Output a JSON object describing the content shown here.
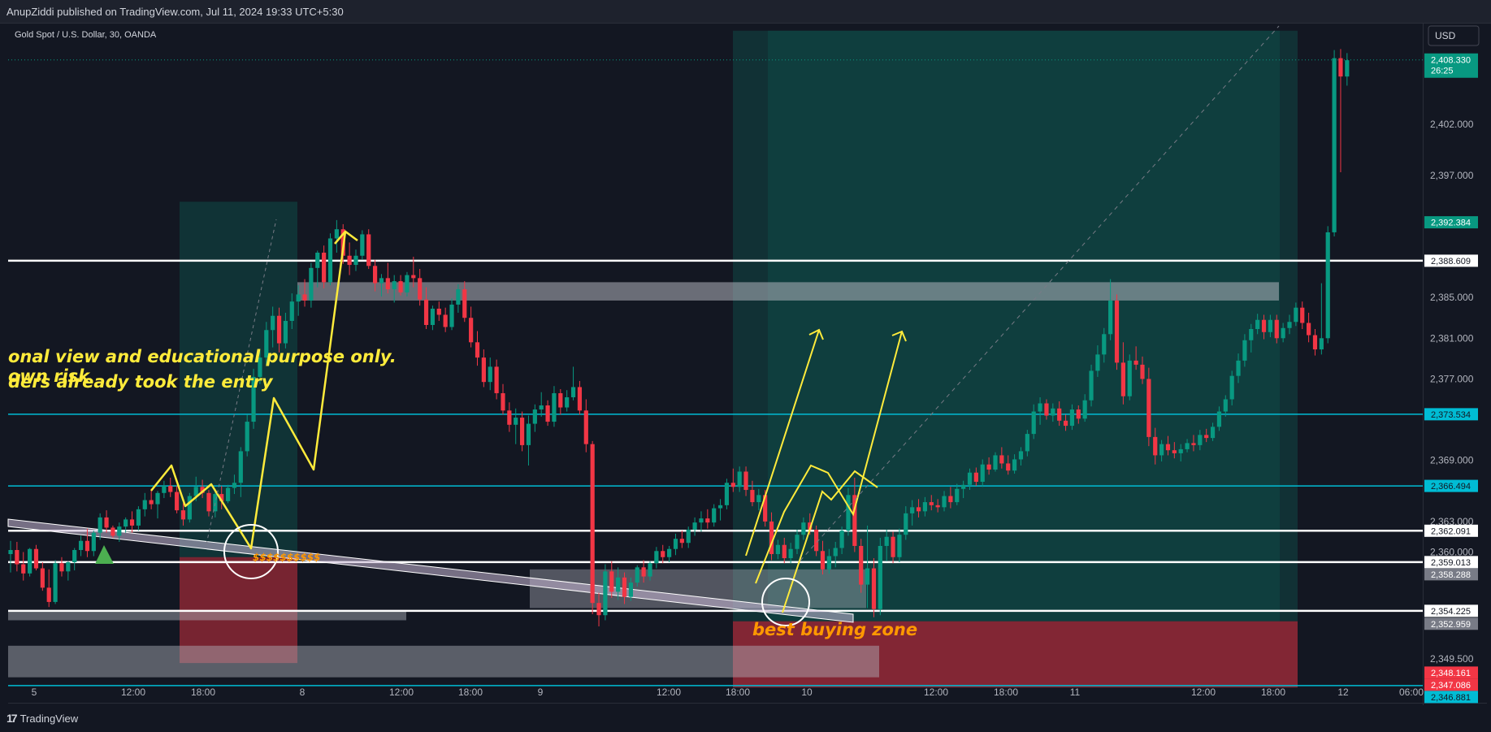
{
  "header": {
    "publisher": "AnupZiddi published on TradingView.com, Jul 11, 2024 19:33 UTC+5:30"
  },
  "footer": {
    "brand": "TradingView"
  },
  "chart_data": {
    "type": "candlestick",
    "title": "Gold Spot / U.S. Dollar, 30, OANDA",
    "currency_button": "USD",
    "grid": false,
    "ylim": [
      2345.2,
      2411.9
    ],
    "x_tick_labels": [
      "5",
      "12:00",
      "18:00",
      "8",
      "12:00",
      "18:00",
      "9",
      "12:00",
      "18:00",
      "10",
      "12:00",
      "18:00",
      "11",
      "12:00",
      "18:00",
      "12",
      "06:00"
    ],
    "y_tick_labels": [
      2402.0,
      2397.0,
      2385.0,
      2381.0,
      2377.0,
      2369.0,
      2363.0,
      2360.0,
      2349.5
    ],
    "current_price": {
      "value": "2,408.330",
      "countdown": "26:25",
      "color": "#089981"
    },
    "price_labels": [
      {
        "value": "2,392.384",
        "bg": "#089981",
        "fg": "#ffffff"
      },
      {
        "value": "2,388.609",
        "bg": "#ffffff",
        "fg": "#131722"
      },
      {
        "value": "2,373.534",
        "bg": "#00bcd4",
        "fg": "#131722"
      },
      {
        "value": "2,366.494",
        "bg": "#00bcd4",
        "fg": "#131722"
      },
      {
        "value": "2,362.091",
        "bg": "#ffffff",
        "fg": "#131722"
      },
      {
        "value": "2,359.013",
        "bg": "#ffffff",
        "fg": "#131722"
      },
      {
        "value": "2,358.288",
        "bg": "#787b86",
        "fg": "#ffffff"
      },
      {
        "value": "2,354.225",
        "bg": "#ffffff",
        "fg": "#131722"
      },
      {
        "value": "2,352.959",
        "bg": "#787b86",
        "fg": "#ffffff"
      },
      {
        "value": "2,348.161",
        "bg": "#f23645",
        "fg": "#ffffff"
      },
      {
        "value": "2,347.086",
        "bg": "#f23645",
        "fg": "#ffffff"
      },
      {
        "value": "2,346.881",
        "bg": "#00bcd4",
        "fg": "#131722"
      }
    ],
    "horizontal_lines": [
      {
        "price": 2388.609,
        "color": "#ffffff"
      },
      {
        "price": 2373.534,
        "color": "#00bcd4"
      },
      {
        "price": 2366.494,
        "color": "#00bcd4"
      },
      {
        "price": 2362.091,
        "color": "#ffffff"
      },
      {
        "price": 2359.013,
        "color": "#ffffff"
      },
      {
        "price": 2354.225,
        "color": "#ffffff"
      },
      {
        "price": 2346.881,
        "color": "#00bcd4"
      }
    ],
    "annotations": {
      "text_line_1": "onal view and educational purpose only.",
      "text_line_2": "own risk",
      "text_line_3": "ders already took the entry",
      "liquidity_label": "$$$$$$$$$$",
      "zone_label": "best buying zone"
    },
    "candles": [
      [
        2359.8,
        2361.1,
        2358.0,
        2360.2
      ],
      [
        2360.2,
        2361.0,
        2358.1,
        2358.8
      ],
      [
        2358.8,
        2360.0,
        2357.2,
        2357.9
      ],
      [
        2357.9,
        2360.4,
        2357.6,
        2360.3
      ],
      [
        2360.3,
        2360.7,
        2358.2,
        2358.4
      ],
      [
        2358.4,
        2359.0,
        2356.2,
        2356.5
      ],
      [
        2356.5,
        2358.3,
        2354.6,
        2355.1
      ],
      [
        2355.1,
        2359.2,
        2354.9,
        2358.9
      ],
      [
        2358.9,
        2359.5,
        2357.6,
        2358.1
      ],
      [
        2358.1,
        2359.1,
        2357.2,
        2359.0
      ],
      [
        2359.0,
        2360.4,
        2358.2,
        2360.2
      ],
      [
        2360.2,
        2361.6,
        2359.6,
        2361.1
      ],
      [
        2361.1,
        2362.3,
        2359.5,
        2360.1
      ],
      [
        2360.1,
        2362.1,
        2359.6,
        2361.9
      ],
      [
        2361.9,
        2363.8,
        2361.2,
        2363.4
      ],
      [
        2363.4,
        2364.1,
        2361.9,
        2362.4
      ],
      [
        2362.4,
        2362.6,
        2361.4,
        2361.6
      ],
      [
        2361.6,
        2362.9,
        2361.0,
        2362.5
      ],
      [
        2362.5,
        2363.4,
        2361.9,
        2363.2
      ],
      [
        2363.2,
        2364.0,
        2361.9,
        2362.6
      ],
      [
        2362.6,
        2364.5,
        2362.1,
        2364.2
      ],
      [
        2364.2,
        2365.8,
        2363.5,
        2365.1
      ],
      [
        2365.1,
        2366.2,
        2364.2,
        2364.7
      ],
      [
        2364.7,
        2366.0,
        2363.3,
        2365.8
      ],
      [
        2365.8,
        2367.0,
        2365.3,
        2366.5
      ],
      [
        2366.5,
        2367.3,
        2365.4,
        2365.9
      ],
      [
        2365.9,
        2366.5,
        2363.8,
        2364.1
      ],
      [
        2364.1,
        2364.8,
        2362.6,
        2363.2
      ],
      [
        2363.2,
        2365.8,
        2362.9,
        2365.5
      ],
      [
        2365.5,
        2367.4,
        2365.0,
        2366.4
      ],
      [
        2366.4,
        2367.1,
        2365.3,
        2365.8
      ],
      [
        2365.8,
        2366.1,
        2363.5,
        2364.0
      ],
      [
        2364.0,
        2366.0,
        2363.4,
        2365.7
      ],
      [
        2365.7,
        2366.5,
        2364.2,
        2365.0
      ],
      [
        2365.0,
        2366.6,
        2364.8,
        2366.3
      ],
      [
        2366.3,
        2367.6,
        2365.7,
        2366.8
      ],
      [
        2366.8,
        2370.3,
        2365.4,
        2369.9
      ],
      [
        2369.9,
        2373.5,
        2369.4,
        2372.8
      ],
      [
        2372.8,
        2378.0,
        2372.1,
        2377.2
      ],
      [
        2377.2,
        2379.8,
        2376.5,
        2379.1
      ],
      [
        2379.1,
        2382.6,
        2378.4,
        2381.8
      ],
      [
        2381.8,
        2384.1,
        2380.1,
        2383.2
      ],
      [
        2383.2,
        2384.0,
        2379.6,
        2380.5
      ],
      [
        2380.5,
        2383.5,
        2380.0,
        2382.7
      ],
      [
        2382.7,
        2385.4,
        2381.9,
        2384.6
      ],
      [
        2384.6,
        2386.2,
        2383.2,
        2385.3
      ],
      [
        2385.3,
        2386.8,
        2384.1,
        2384.7
      ],
      [
        2384.7,
        2388.4,
        2384.0,
        2387.9
      ],
      [
        2387.9,
        2389.6,
        2386.0,
        2389.4
      ],
      [
        2389.4,
        2390.1,
        2385.9,
        2386.5
      ],
      [
        2386.5,
        2391.3,
        2386.2,
        2390.8
      ],
      [
        2390.8,
        2392.6,
        2389.4,
        2391.7
      ],
      [
        2391.7,
        2392.2,
        2388.3,
        2389.1
      ],
      [
        2389.1,
        2390.4,
        2387.2,
        2388.2
      ],
      [
        2388.2,
        2389.7,
        2387.6,
        2389.1
      ],
      [
        2389.1,
        2391.6,
        2388.7,
        2391.2
      ],
      [
        2391.2,
        2391.7,
        2387.8,
        2388.1
      ],
      [
        2388.1,
        2388.7,
        2385.6,
        2386.4
      ],
      [
        2386.4,
        2387.3,
        2385.1,
        2386.9
      ],
      [
        2386.9,
        2388.4,
        2385.4,
        2385.8
      ],
      [
        2385.8,
        2387.2,
        2384.5,
        2386.6
      ],
      [
        2386.6,
        2387.2,
        2385.2,
        2385.5
      ],
      [
        2385.5,
        2387.5,
        2385.1,
        2387.2
      ],
      [
        2387.2,
        2389.0,
        2386.0,
        2386.9
      ],
      [
        2386.9,
        2387.8,
        2384.2,
        2384.8
      ],
      [
        2384.8,
        2386.0,
        2381.9,
        2382.3
      ],
      [
        2382.3,
        2384.2,
        2381.8,
        2383.9
      ],
      [
        2383.9,
        2384.6,
        2382.7,
        2383.3
      ],
      [
        2383.3,
        2384.0,
        2381.6,
        2382.1
      ],
      [
        2382.1,
        2384.9,
        2381.8,
        2384.3
      ],
      [
        2384.3,
        2386.3,
        2383.5,
        2385.8
      ],
      [
        2385.8,
        2386.6,
        2382.6,
        2383.0
      ],
      [
        2383.0,
        2384.1,
        2380.1,
        2380.6
      ],
      [
        2380.6,
        2381.7,
        2378.3,
        2379.1
      ],
      [
        2379.1,
        2379.9,
        2376.2,
        2376.7
      ],
      [
        2376.7,
        2379.1,
        2375.9,
        2378.2
      ],
      [
        2378.2,
        2378.9,
        2375.0,
        2375.6
      ],
      [
        2375.6,
        2376.5,
        2373.5,
        2373.9
      ],
      [
        2373.9,
        2374.7,
        2371.8,
        2372.5
      ],
      [
        2372.5,
        2374.1,
        2370.6,
        2373.2
      ],
      [
        2373.2,
        2373.8,
        2369.9,
        2370.5
      ],
      [
        2370.5,
        2373.4,
        2368.5,
        2372.6
      ],
      [
        2372.6,
        2374.5,
        2371.8,
        2374.0
      ],
      [
        2374.0,
        2375.7,
        2373.3,
        2374.4
      ],
      [
        2374.4,
        2374.9,
        2372.4,
        2372.8
      ],
      [
        2372.8,
        2376.3,
        2372.3,
        2375.6
      ],
      [
        2375.6,
        2376.0,
        2373.5,
        2374.2
      ],
      [
        2374.2,
        2375.9,
        2373.8,
        2375.2
      ],
      [
        2375.2,
        2378.2,
        2374.9,
        2376.2
      ],
      [
        2376.2,
        2376.8,
        2373.5,
        2373.9
      ],
      [
        2373.9,
        2375.0,
        2369.8,
        2370.6
      ],
      [
        2370.6,
        2370.9,
        2353.9,
        2355.0
      ],
      [
        2355.0,
        2356.0,
        2352.7,
        2353.8
      ],
      [
        2353.8,
        2358.8,
        2353.3,
        2358.1
      ],
      [
        2358.1,
        2359.1,
        2355.5,
        2356.1
      ],
      [
        2356.1,
        2358.5,
        2355.3,
        2357.5
      ],
      [
        2357.5,
        2358.0,
        2354.9,
        2355.6
      ],
      [
        2355.6,
        2357.5,
        2355.2,
        2357.0
      ],
      [
        2357.0,
        2358.7,
        2356.6,
        2358.5
      ],
      [
        2358.5,
        2359.2,
        2357.0,
        2357.6
      ],
      [
        2357.6,
        2359.1,
        2357.2,
        2358.9
      ],
      [
        2358.9,
        2360.5,
        2358.4,
        2360.1
      ],
      [
        2360.1,
        2360.7,
        2358.9,
        2359.5
      ],
      [
        2359.5,
        2360.6,
        2359.0,
        2360.3
      ],
      [
        2360.3,
        2361.8,
        2359.7,
        2361.3
      ],
      [
        2361.3,
        2362.1,
        2360.4,
        2360.9
      ],
      [
        2360.9,
        2362.5,
        2360.4,
        2362.2
      ],
      [
        2362.2,
        2363.4,
        2361.6,
        2362.9
      ],
      [
        2362.9,
        2364.0,
        2362.0,
        2363.3
      ],
      [
        2363.3,
        2364.2,
        2362.3,
        2362.9
      ],
      [
        2362.9,
        2364.7,
        2362.5,
        2364.3
      ],
      [
        2364.3,
        2365.2,
        2363.1,
        2364.6
      ],
      [
        2364.6,
        2367.2,
        2364.2,
        2366.8
      ],
      [
        2366.8,
        2368.2,
        2365.9,
        2366.4
      ],
      [
        2366.4,
        2368.4,
        2365.9,
        2367.9
      ],
      [
        2367.9,
        2368.4,
        2365.5,
        2366.1
      ],
      [
        2366.1,
        2367.0,
        2364.5,
        2364.9
      ],
      [
        2364.9,
        2366.2,
        2364.1,
        2365.6
      ],
      [
        2365.6,
        2366.1,
        2362.5,
        2363.0
      ],
      [
        2363.0,
        2363.9,
        2359.2,
        2359.8
      ],
      [
        2359.8,
        2361.2,
        2359.3,
        2360.7
      ],
      [
        2360.7,
        2361.4,
        2358.9,
        2359.4
      ],
      [
        2359.4,
        2360.9,
        2358.9,
        2360.3
      ],
      [
        2360.3,
        2362.2,
        2359.8,
        2361.7
      ],
      [
        2361.7,
        2363.4,
        2361.2,
        2362.9
      ],
      [
        2362.9,
        2363.8,
        2361.7,
        2362.2
      ],
      [
        2362.2,
        2362.6,
        2359.6,
        2360.1
      ],
      [
        2360.1,
        2361.1,
        2357.8,
        2358.3
      ],
      [
        2358.3,
        2360.3,
        2357.9,
        2359.6
      ],
      [
        2359.6,
        2361.0,
        2358.5,
        2360.4
      ],
      [
        2360.4,
        2362.5,
        2359.8,
        2362.1
      ],
      [
        2362.1,
        2366.3,
        2361.6,
        2365.6
      ],
      [
        2365.6,
        2367.3,
        2360.0,
        2360.6
      ],
      [
        2360.6,
        2361.3,
        2356.0,
        2356.8
      ],
      [
        2356.8,
        2362.6,
        2354.5,
        2358.4
      ],
      [
        2358.4,
        2359.4,
        2353.6,
        2354.4
      ],
      [
        2354.4,
        2361.4,
        2353.8,
        2360.6
      ],
      [
        2360.6,
        2362.2,
        2359.1,
        2361.5
      ],
      [
        2361.5,
        2362.0,
        2358.9,
        2359.5
      ],
      [
        2359.5,
        2362.3,
        2359.0,
        2361.7
      ],
      [
        2361.7,
        2364.5,
        2361.2,
        2363.8
      ],
      [
        2363.8,
        2365.1,
        2362.6,
        2364.4
      ],
      [
        2364.4,
        2365.2,
        2363.4,
        2364.0
      ],
      [
        2364.0,
        2365.4,
        2363.5,
        2364.9
      ],
      [
        2364.9,
        2365.6,
        2364.1,
        2364.6
      ],
      [
        2364.6,
        2365.2,
        2363.9,
        2364.4
      ],
      [
        2364.4,
        2366.0,
        2364.0,
        2365.5
      ],
      [
        2365.5,
        2366.4,
        2364.3,
        2364.9
      ],
      [
        2364.9,
        2366.7,
        2364.6,
        2366.2
      ],
      [
        2366.2,
        2367.0,
        2365.3,
        2366.6
      ],
      [
        2366.6,
        2368.2,
        2366.1,
        2367.8
      ],
      [
        2367.8,
        2368.3,
        2366.5,
        2366.9
      ],
      [
        2366.9,
        2369.1,
        2366.4,
        2368.6
      ],
      [
        2368.6,
        2369.3,
        2367.6,
        2368.1
      ],
      [
        2368.1,
        2369.8,
        2367.9,
        2369.5
      ],
      [
        2369.5,
        2370.3,
        2368.2,
        2368.7
      ],
      [
        2368.7,
        2369.5,
        2367.6,
        2368.0
      ],
      [
        2368.0,
        2369.6,
        2367.7,
        2369.1
      ],
      [
        2369.1,
        2370.3,
        2368.5,
        2369.9
      ],
      [
        2369.9,
        2372.0,
        2369.4,
        2371.6
      ],
      [
        2371.6,
        2374.5,
        2371.1,
        2373.8
      ],
      [
        2373.8,
        2375.2,
        2372.5,
        2374.6
      ],
      [
        2374.6,
        2375.0,
        2373.0,
        2373.4
      ],
      [
        2373.4,
        2374.6,
        2372.8,
        2374.1
      ],
      [
        2374.1,
        2374.8,
        2372.4,
        2372.9
      ],
      [
        2372.9,
        2373.5,
        2371.9,
        2372.4
      ],
      [
        2372.4,
        2374.5,
        2372.0,
        2374.0
      ],
      [
        2374.0,
        2374.4,
        2372.6,
        2373.1
      ],
      [
        2373.1,
        2375.5,
        2372.8,
        2374.9
      ],
      [
        2374.9,
        2378.4,
        2374.3,
        2377.8
      ],
      [
        2377.8,
        2380.3,
        2377.2,
        2379.4
      ],
      [
        2379.4,
        2382.0,
        2378.6,
        2381.4
      ],
      [
        2381.4,
        2386.8,
        2380.8,
        2384.7
      ],
      [
        2384.7,
        2385.3,
        2377.9,
        2378.6
      ],
      [
        2378.6,
        2380.6,
        2374.5,
        2375.3
      ],
      [
        2375.3,
        2379.4,
        2374.9,
        2378.8
      ],
      [
        2378.8,
        2380.2,
        2377.9,
        2378.4
      ],
      [
        2378.4,
        2379.2,
        2376.5,
        2377.0
      ],
      [
        2377.0,
        2378.1,
        2370.4,
        2371.3
      ],
      [
        2371.3,
        2372.2,
        2368.6,
        2369.5
      ],
      [
        2369.5,
        2371.0,
        2368.9,
        2370.6
      ],
      [
        2370.6,
        2371.4,
        2369.5,
        2370.0
      ],
      [
        2370.0,
        2370.8,
        2369.2,
        2369.7
      ],
      [
        2369.7,
        2370.6,
        2368.9,
        2370.1
      ],
      [
        2370.1,
        2371.1,
        2369.8,
        2370.7
      ],
      [
        2370.7,
        2371.5,
        2369.9,
        2370.5
      ],
      [
        2370.5,
        2372.0,
        2370.0,
        2371.5
      ],
      [
        2371.5,
        2372.1,
        2370.8,
        2371.2
      ],
      [
        2371.2,
        2372.7,
        2370.9,
        2372.3
      ],
      [
        2372.3,
        2374.3,
        2371.9,
        2373.8
      ],
      [
        2373.8,
        2375.4,
        2373.3,
        2375.0
      ],
      [
        2375.0,
        2377.8,
        2374.4,
        2377.3
      ],
      [
        2377.3,
        2379.5,
        2376.6,
        2378.8
      ],
      [
        2378.8,
        2381.4,
        2378.2,
        2380.8
      ],
      [
        2380.8,
        2382.4,
        2379.6,
        2381.9
      ],
      [
        2381.9,
        2383.4,
        2381.4,
        2382.8
      ],
      [
        2382.8,
        2383.3,
        2380.9,
        2381.6
      ],
      [
        2381.6,
        2383.3,
        2381.1,
        2382.8
      ],
      [
        2382.8,
        2383.3,
        2380.5,
        2381.0
      ],
      [
        2381.0,
        2382.5,
        2380.6,
        2382.0
      ],
      [
        2382.0,
        2383.3,
        2381.4,
        2382.6
      ],
      [
        2382.6,
        2384.5,
        2382.2,
        2384.0
      ],
      [
        2384.0,
        2384.6,
        2381.9,
        2382.5
      ],
      [
        2382.5,
        2383.5,
        2380.6,
        2381.3
      ],
      [
        2381.3,
        2381.9,
        2379.3,
        2379.9
      ],
      [
        2379.9,
        2386.4,
        2379.4,
        2381.0
      ],
      [
        2381.0,
        2392.0,
        2380.5,
        2391.4
      ],
      [
        2391.4,
        2409.3,
        2391.0,
        2408.5
      ],
      [
        2408.5,
        2409.4,
        2397.3,
        2406.7
      ],
      [
        2406.7,
        2409.0,
        2405.8,
        2408.3
      ]
    ]
  }
}
